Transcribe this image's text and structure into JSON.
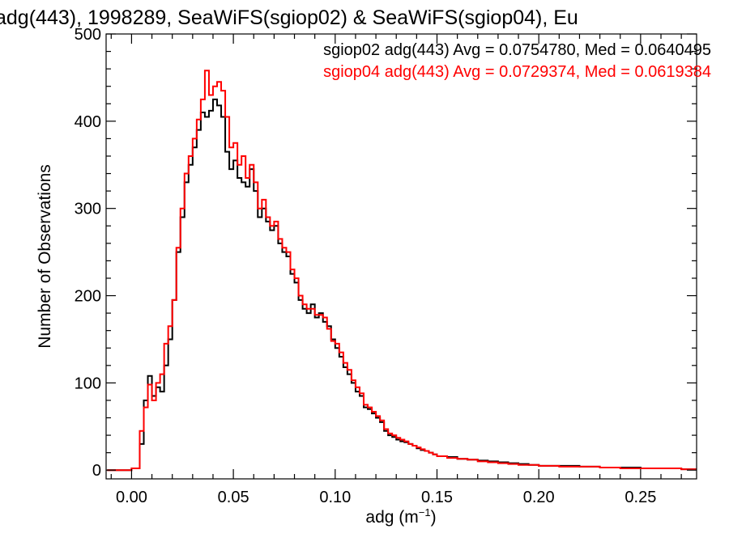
{
  "chart_data": {
    "type": "line",
    "title": "adg(443), 1998289, SeaWiFS(sgiop02) & SeaWiFS(sgiop04), Eu",
    "xlabel": {
      "base": "adg (m",
      "sup": "−1",
      "close": ")"
    },
    "ylabel": "Number of Observations",
    "xlim": [
      -0.0125,
      0.2775
    ],
    "ylim": [
      -10,
      500
    ],
    "xticks": [
      0.0,
      0.05,
      0.1,
      0.15,
      0.2,
      0.25
    ],
    "xtick_labels": [
      "0.00",
      "0.05",
      "0.10",
      "0.15",
      "0.20",
      "0.25"
    ],
    "yticks": [
      0,
      100,
      200,
      300,
      400,
      500
    ],
    "ytick_labels": [
      "0",
      "100",
      "200",
      "300",
      "400",
      "500"
    ],
    "grid": false,
    "legend": "top-right",
    "annotations": [
      "sgiop02 adg(443) Avg = 0.0754780, Med = 0.0640495",
      "sgiop04 adg(443) Avg = 0.0729374, Med = 0.0619384"
    ],
    "series": [
      {
        "name": "sgiop02",
        "color": "#000000",
        "x": [
          -0.012,
          0.0,
          0.004,
          0.006,
          0.008,
          0.01,
          0.012,
          0.014,
          0.016,
          0.018,
          0.02,
          0.022,
          0.024,
          0.026,
          0.028,
          0.03,
          0.032,
          0.034,
          0.036,
          0.038,
          0.04,
          0.042,
          0.044,
          0.046,
          0.048,
          0.05,
          0.052,
          0.054,
          0.056,
          0.058,
          0.06,
          0.062,
          0.064,
          0.066,
          0.068,
          0.07,
          0.072,
          0.074,
          0.076,
          0.078,
          0.08,
          0.082,
          0.084,
          0.086,
          0.088,
          0.09,
          0.092,
          0.094,
          0.096,
          0.098,
          0.1,
          0.102,
          0.104,
          0.106,
          0.108,
          0.11,
          0.112,
          0.114,
          0.116,
          0.118,
          0.12,
          0.122,
          0.124,
          0.126,
          0.128,
          0.13,
          0.132,
          0.134,
          0.136,
          0.138,
          0.14,
          0.142,
          0.144,
          0.146,
          0.148,
          0.15,
          0.155,
          0.16,
          0.165,
          0.17,
          0.175,
          0.18,
          0.185,
          0.19,
          0.195,
          0.2,
          0.21,
          0.22,
          0.23,
          0.24,
          0.25,
          0.26,
          0.27,
          0.2775
        ],
        "y": [
          0,
          2,
          30,
          80,
          108,
          85,
          95,
          90,
          120,
          150,
          195,
          250,
          290,
          330,
          350,
          370,
          390,
          410,
          405,
          412,
          425,
          418,
          405,
          365,
          345,
          355,
          335,
          330,
          325,
          345,
          320,
          290,
          300,
          285,
          275,
          280,
          260,
          250,
          245,
          225,
          215,
          195,
          185,
          180,
          190,
          175,
          180,
          170,
          165,
          150,
          140,
          130,
          118,
          110,
          100,
          90,
          85,
          72,
          70,
          65,
          60,
          55,
          45,
          40,
          38,
          35,
          33,
          32,
          30,
          28,
          25,
          23,
          22,
          20,
          18,
          16,
          15,
          13,
          12,
          11,
          10,
          9,
          8,
          7,
          6,
          5,
          5,
          4,
          3,
          3,
          2,
          2,
          1,
          1
        ]
      },
      {
        "name": "sgiop04",
        "color": "#ff0000",
        "x": [
          -0.012,
          0.0,
          0.004,
          0.006,
          0.008,
          0.01,
          0.012,
          0.014,
          0.016,
          0.018,
          0.02,
          0.022,
          0.024,
          0.026,
          0.028,
          0.03,
          0.032,
          0.034,
          0.036,
          0.038,
          0.04,
          0.042,
          0.044,
          0.046,
          0.048,
          0.05,
          0.052,
          0.054,
          0.056,
          0.058,
          0.06,
          0.062,
          0.064,
          0.066,
          0.068,
          0.07,
          0.072,
          0.074,
          0.076,
          0.078,
          0.08,
          0.082,
          0.084,
          0.086,
          0.088,
          0.09,
          0.092,
          0.094,
          0.096,
          0.098,
          0.1,
          0.102,
          0.104,
          0.106,
          0.108,
          0.11,
          0.112,
          0.114,
          0.116,
          0.118,
          0.12,
          0.122,
          0.124,
          0.126,
          0.128,
          0.13,
          0.132,
          0.134,
          0.136,
          0.138,
          0.14,
          0.142,
          0.144,
          0.146,
          0.148,
          0.15,
          0.155,
          0.16,
          0.165,
          0.17,
          0.175,
          0.18,
          0.185,
          0.19,
          0.195,
          0.2,
          0.21,
          0.22,
          0.23,
          0.24,
          0.25,
          0.26,
          0.27,
          0.2775
        ],
        "y": [
          0,
          2,
          45,
          72,
          98,
          80,
          100,
          110,
          145,
          165,
          195,
          255,
          300,
          340,
          360,
          380,
          402,
          425,
          458,
          430,
          440,
          445,
          435,
          405,
          370,
          375,
          350,
          360,
          335,
          350,
          330,
          300,
          310,
          290,
          280,
          285,
          265,
          255,
          250,
          230,
          220,
          200,
          190,
          185,
          185,
          178,
          178,
          175,
          162,
          148,
          145,
          135,
          123,
          115,
          103,
          95,
          88,
          75,
          72,
          67,
          62,
          57,
          47,
          42,
          40,
          37,
          35,
          33,
          30,
          28,
          26,
          24,
          22,
          20,
          18,
          16,
          14,
          13,
          12,
          10,
          9,
          8,
          7,
          6,
          6,
          5,
          4,
          4,
          3,
          2,
          2,
          2,
          1,
          1
        ]
      }
    ]
  }
}
